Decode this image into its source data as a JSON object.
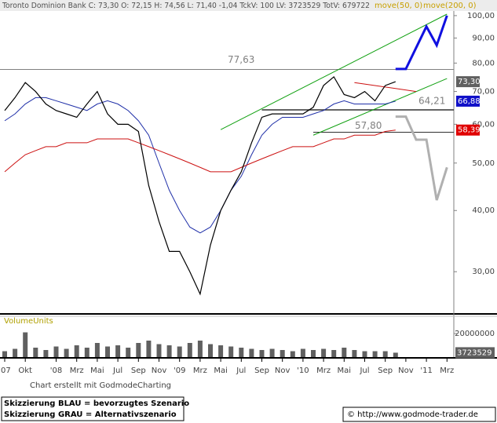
{
  "chart_data": [
    {
      "type": "line",
      "title": "Toronto Dominion Bank  C: 73,30 O: 72,15 H: 74,56 L: 71,40 -1,04 TckV: 100 LV: 3723529 TotV: 679722",
      "log_scale": true,
      "grid": false,
      "x": [
        "2007-08",
        "2007-09",
        "2007-10",
        "2007-11",
        "2007-12",
        "2008-01",
        "2008-02",
        "2008-03",
        "2008-04",
        "2008-05",
        "2008-06",
        "2008-07",
        "2008-08",
        "2008-09",
        "2008-10",
        "2008-11",
        "2008-12",
        "2009-01",
        "2009-02",
        "2009-03",
        "2009-04",
        "2009-05",
        "2009-06",
        "2009-07",
        "2009-08",
        "2009-09",
        "2009-10",
        "2009-11",
        "2009-12",
        "2010-01",
        "2010-02",
        "2010-03",
        "2010-04",
        "2010-05",
        "2010-06",
        "2010-07",
        "2010-08",
        "2010-09",
        "2010-10"
      ],
      "price": {
        "color": "#000000",
        "values": [
          64,
          68,
          73,
          70,
          66,
          64,
          63,
          62,
          66,
          70,
          63,
          60,
          60,
          58,
          45,
          38,
          33,
          33,
          30,
          27,
          34,
          40,
          44,
          48,
          55,
          62,
          63,
          63,
          63,
          63,
          65,
          72,
          75,
          69,
          68,
          70,
          67,
          72,
          73.3
        ]
      },
      "series": [
        {
          "name": "move(50, 0)",
          "color": "#1f2fa8",
          "values": [
            61,
            63,
            66,
            68,
            68,
            67,
            66,
            65,
            64,
            66,
            67,
            66,
            64,
            61,
            57,
            50,
            44,
            40,
            37,
            36,
            37,
            40,
            44,
            47,
            52,
            57,
            60,
            62,
            62,
            62,
            63,
            64,
            66,
            67,
            66,
            66,
            66,
            66,
            66.88
          ]
        },
        {
          "name": "move(200, 0)",
          "color": "#cc1010",
          "values": [
            48,
            50,
            52,
            53,
            54,
            54,
            55,
            55,
            55,
            56,
            56,
            56,
            56,
            55,
            54,
            53,
            52,
            51,
            50,
            49,
            48,
            48,
            48,
            49,
            50,
            51,
            52,
            53,
            54,
            54,
            54,
            55,
            56,
            56,
            57,
            57,
            57,
            58,
            58.39
          ]
        }
      ],
      "markers": [
        {
          "value": 73.3,
          "label": "73,30",
          "color": "#606060"
        },
        {
          "value": 66.88,
          "label": "66,88",
          "color": "#1010c8"
        },
        {
          "value": 58.39,
          "label": "58,39",
          "color": "#e00000"
        }
      ],
      "levels": [
        {
          "value": 77.63,
          "label": "77,63",
          "from": "2007-08"
        },
        {
          "value": 64.21,
          "label": "64,21",
          "from": "2009-09"
        },
        {
          "value": 57.8,
          "label": "57,80",
          "from": "2010-02"
        }
      ],
      "trendlines": [
        {
          "color": "#10a010",
          "x": [
            "2009-05",
            "2011-03"
          ],
          "values": [
            58.5,
            100.7
          ]
        },
        {
          "color": "#10a010",
          "x": [
            "2010-02",
            "2011-03"
          ],
          "values": [
            57,
            74.4
          ]
        },
        {
          "color": "#cc1010",
          "x": [
            "2010-06",
            "2010-12"
          ],
          "values": [
            73,
            70
          ]
        }
      ],
      "scenarios": [
        {
          "color": "#1010e0",
          "x": [
            "2010-10",
            "2010-11",
            "2011-01",
            "2011-02",
            "2011-03"
          ],
          "values": [
            77.8,
            77.8,
            95,
            87,
            100
          ]
        },
        {
          "color": "#b0b0b0",
          "x": [
            "2010-10",
            "2010-11",
            "2010-12",
            "2011-01",
            "2011-02",
            "2011-03"
          ],
          "values": [
            62.2,
            62.2,
            55.8,
            55.8,
            42,
            49
          ]
        }
      ],
      "ylim": [
        24.6,
        102.2
      ],
      "yticks": [
        {
          "value": 30,
          "label": "30,00"
        },
        {
          "value": 40,
          "label": "40,00"
        },
        {
          "value": 50,
          "label": "50,00"
        },
        {
          "value": 60,
          "label": "60,00"
        },
        {
          "value": 70,
          "label": "70,00"
        },
        {
          "value": 80,
          "label": "80,00"
        },
        {
          "value": 90,
          "label": "90,00"
        },
        {
          "value": 100,
          "label": "100,00"
        }
      ],
      "xticks": [
        {
          "value": "2007-08",
          "label": "'07"
        },
        {
          "value": "2007-10",
          "label": "Okt"
        },
        {
          "value": "2008-01",
          "label": "'08"
        },
        {
          "value": "2008-03",
          "label": "Mrz"
        },
        {
          "value": "2008-05",
          "label": "Mai"
        },
        {
          "value": "2008-07",
          "label": "Jul"
        },
        {
          "value": "2008-09",
          "label": "Sep"
        },
        {
          "value": "2008-11",
          "label": "Nov"
        },
        {
          "value": "2009-01",
          "label": "'09"
        },
        {
          "value": "2009-03",
          "label": "Mrz"
        },
        {
          "value": "2009-05",
          "label": "Mai"
        },
        {
          "value": "2009-07",
          "label": "Jul"
        },
        {
          "value": "2009-09",
          "label": "Sep"
        },
        {
          "value": "2009-11",
          "label": "Nov"
        },
        {
          "value": "2010-01",
          "label": "'10"
        },
        {
          "value": "2010-03",
          "label": "Mrz"
        },
        {
          "value": "2010-05",
          "label": "Mai"
        },
        {
          "value": "2010-07",
          "label": "Jul"
        },
        {
          "value": "2010-09",
          "label": "Sep"
        },
        {
          "value": "2010-11",
          "label": "Nov"
        },
        {
          "value": "2011-01",
          "label": "'11"
        },
        {
          "value": "2011-03",
          "label": "Mrz"
        }
      ]
    },
    {
      "type": "bar",
      "title": "VolumeUnits",
      "color": "#606060",
      "x": [
        "2007-08",
        "2007-09",
        "2007-10",
        "2007-11",
        "2007-12",
        "2008-01",
        "2008-02",
        "2008-03",
        "2008-04",
        "2008-05",
        "2008-06",
        "2008-07",
        "2008-08",
        "2008-09",
        "2008-10",
        "2008-11",
        "2008-12",
        "2009-01",
        "2009-02",
        "2009-03",
        "2009-04",
        "2009-05",
        "2009-06",
        "2009-07",
        "2009-08",
        "2009-09",
        "2009-10",
        "2009-11",
        "2009-12",
        "2010-01",
        "2010-02",
        "2010-03",
        "2010-04",
        "2010-05",
        "2010-06",
        "2010-07",
        "2010-08",
        "2010-09",
        "2010-10"
      ],
      "values": [
        5000000,
        7000000,
        21000000,
        8000000,
        6000000,
        9000000,
        7000000,
        10000000,
        8000000,
        12000000,
        9000000,
        10000000,
        8000000,
        12000000,
        14000000,
        11000000,
        10000000,
        9000000,
        12000000,
        14000000,
        11000000,
        10000000,
        9000000,
        8000000,
        7000000,
        6000000,
        7000000,
        6000000,
        5000000,
        7000000,
        6000000,
        7000000,
        6000000,
        8000000,
        6000000,
        5000000,
        5000000,
        5000000,
        3723529
      ],
      "marker": 3723529,
      "ylim": [
        0,
        34000000
      ],
      "yticks": [
        20000000
      ]
    }
  ],
  "footer": {
    "credit": "Chart erstellt mit GodmodeCharting",
    "note1": "Skizzierung BLAU = bevorzugtes Szenario",
    "note2": "Skizzierung GRAU = Alternativszenario",
    "source": "© http://www.godmode-trader.de"
  }
}
